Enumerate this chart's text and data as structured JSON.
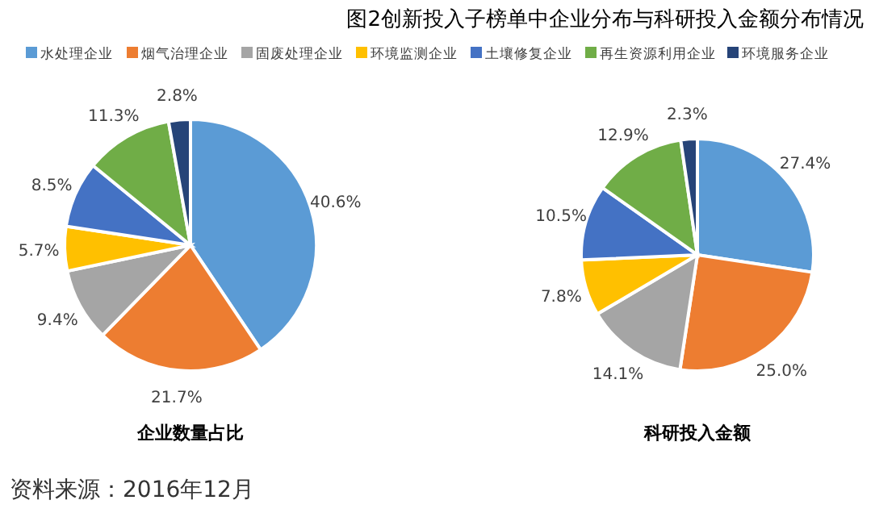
{
  "chart_data": [
    {
      "type": "pie",
      "xlabel": "企业数量占比",
      "categories": [
        "水处理企业",
        "烟气治理企业",
        "固废处理企业",
        "环境监测企业",
        "土壤修复企业",
        "再生资源利用企业",
        "环境服务企业"
      ],
      "values": [
        40.6,
        21.7,
        9.4,
        5.7,
        8.5,
        11.3,
        2.8
      ],
      "value_labels": [
        "40.6%",
        "21.7%",
        "9.4%",
        "5.7%",
        "8.5%",
        "11.3%",
        "2.8%"
      ],
      "colors": [
        "#5b9bd5",
        "#ed7d31",
        "#a5a5a5",
        "#ffc000",
        "#4472c4",
        "#70ad47",
        "#264478"
      ],
      "legend": "top",
      "annotations": [
        "资料来源：2016年12月"
      ]
    },
    {
      "type": "pie",
      "title": "图2创新投入子榜单中企业分布与科研投入金额分布情况",
      "xlabel": "科研投入金额",
      "categories": [
        null,
        null,
        null,
        null,
        null,
        null,
        null
      ],
      "values": [
        27.4,
        25.0,
        14.1,
        7.8,
        10.5,
        12.9,
        2.3
      ],
      "value_labels": [
        "27.4%",
        "25.0%",
        "14.1%",
        "7.8%",
        "10.5%",
        "12.9%",
        "2.3%"
      ],
      "colors": [
        "#5b9bd5",
        "#ed7d31",
        "#a5a5a5",
        "#ffc000",
        "#4472c4",
        "#70ad47",
        "#264478"
      ]
    }
  ]
}
